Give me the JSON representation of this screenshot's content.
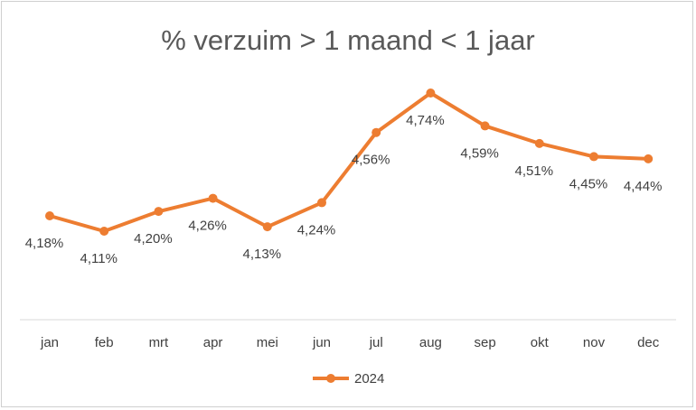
{
  "chart_data": {
    "type": "line",
    "title": "% verzuim > 1 maand < 1 jaar",
    "categories": [
      "jan",
      "feb",
      "mrt",
      "apr",
      "mei",
      "jun",
      "jul",
      "aug",
      "sep",
      "okt",
      "nov",
      "dec"
    ],
    "series": [
      {
        "name": "2024",
        "values": [
          4.18,
          4.11,
          4.2,
          4.26,
          4.13,
          4.24,
          4.56,
          4.74,
          4.59,
          4.51,
          4.45,
          4.44
        ],
        "labels": [
          "4,18%",
          "4,11%",
          "4,20%",
          "4,26%",
          "4,13%",
          "4,24%",
          "4,56%",
          "4,74%",
          "4,59%",
          "4,51%",
          "4,45%",
          "4,44%"
        ],
        "color": "#ED7D31"
      }
    ],
    "ylim": [
      3.7,
      4.95
    ],
    "grid": false,
    "legend": "bottom"
  }
}
